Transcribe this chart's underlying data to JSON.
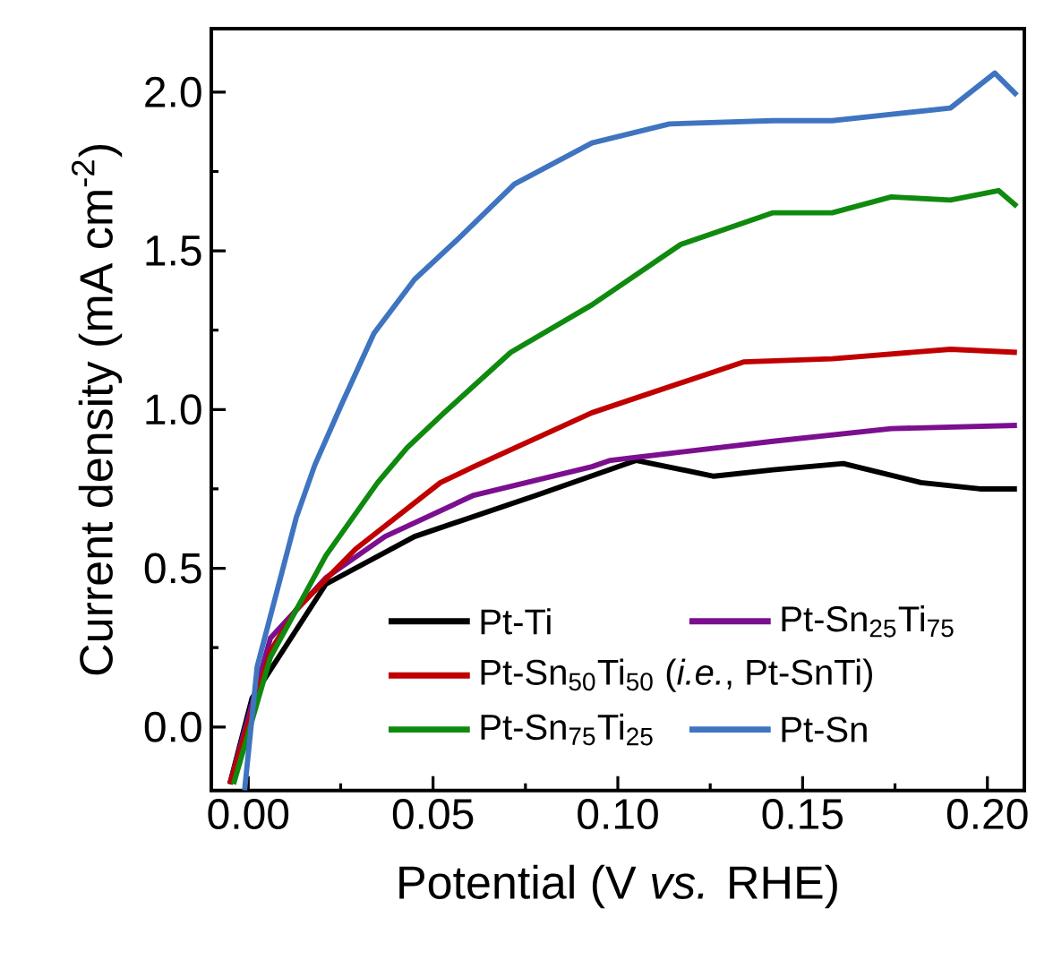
{
  "chart_data": {
    "type": "line",
    "xlabel": "Potential (V *vs.* RHE)",
    "ylabel": "Current density (mA cm$^{-2}$)",
    "xlim": [
      -0.01,
      0.21
    ],
    "ylim": [
      -0.2,
      2.2
    ],
    "xticks": [
      {
        "value": 0,
        "label": "0.00"
      },
      {
        "value": 0.05,
        "label": "0.05"
      },
      {
        "value": 0.1,
        "label": "0.10"
      },
      {
        "value": 0.15,
        "label": "0.15"
      },
      {
        "value": 0.2,
        "label": "0.20"
      }
    ],
    "yticks": [
      {
        "value": 0,
        "label": "0.0"
      },
      {
        "value": 0.5,
        "label": "0.5"
      },
      {
        "value": 1,
        "label": "1.0"
      },
      {
        "value": 1.5,
        "label": "1.5"
      },
      {
        "value": 2,
        "label": "2.0"
      }
    ],
    "legend": "bottom right",
    "grid": false,
    "marker": "none",
    "line_style": "solid",
    "series": [
      {
        "name": "Pt-Ti",
        "color": "#000000",
        "x": [
          -0.005,
          0.001,
          0.021,
          0.045,
          0.078,
          0.105,
          0.126,
          0.142,
          0.161,
          0.182,
          0.198,
          0.208
        ],
        "values": [
          -0.18,
          0.09,
          0.45,
          0.6,
          0.73,
          0.84,
          0.79,
          0.81,
          0.83,
          0.77,
          0.75,
          0.75
        ]
      },
      {
        "name": "Pt-Sn$_{25}$Ti$_{75}$",
        "color": "#7b0f8f",
        "x": [
          -0.005,
          0.006,
          0.021,
          0.037,
          0.061,
          0.093,
          0.098,
          0.142,
          0.174,
          0.208
        ],
        "values": [
          -0.18,
          0.28,
          0.47,
          0.6,
          0.73,
          0.82,
          0.84,
          0.9,
          0.94,
          0.95
        ]
      },
      {
        "name": "Pt-Sn$_{50}$Ti$_{50}$ (*i.e.*, Pt-SnTi)",
        "color": "#c00000",
        "x": [
          -0.005,
          0.006,
          0.013,
          0.029,
          0.052,
          0.061,
          0.093,
          0.134,
          0.158,
          0.19,
          0.208
        ],
        "values": [
          -0.18,
          0.24,
          0.37,
          0.56,
          0.77,
          0.82,
          0.99,
          1.15,
          1.16,
          1.19,
          1.18
        ]
      },
      {
        "name": "Pt-Sn$_{75}$Ti$_{25}$",
        "color": "#0f8a0f",
        "x": [
          -0.004,
          0.006,
          0.021,
          0.035,
          0.043,
          0.053,
          0.071,
          0.093,
          0.117,
          0.142,
          0.158,
          0.174,
          0.19,
          0.203,
          0.208
        ],
        "values": [
          -0.18,
          0.22,
          0.54,
          0.77,
          0.88,
          0.99,
          1.18,
          1.33,
          1.52,
          1.62,
          1.62,
          1.67,
          1.66,
          1.69,
          1.64
        ]
      },
      {
        "name": "Pt-Sn",
        "color": "#3f74c0",
        "x": [
          -0.001,
          0.0024,
          0.013,
          0.018,
          0.025,
          0.034,
          0.045,
          0.057,
          0.072,
          0.093,
          0.114,
          0.142,
          0.158,
          0.174,
          0.19,
          0.202,
          0.208
        ],
        "values": [
          -0.2,
          0.19,
          0.66,
          0.825,
          1.01,
          1.24,
          1.41,
          1.54,
          1.71,
          1.84,
          1.9,
          1.91,
          1.91,
          1.93,
          1.95,
          2.06,
          1.99
        ]
      }
    ]
  }
}
